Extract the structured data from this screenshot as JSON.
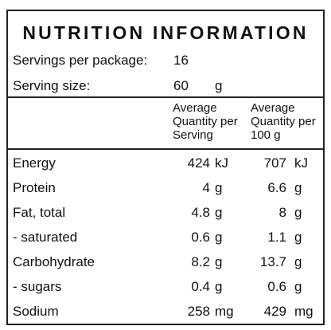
{
  "label": {
    "title": "NUTRITION INFORMATION",
    "servings_per_package_label": "Servings per package:",
    "servings_per_package_value": "16",
    "serving_size_label": "Serving size:",
    "serving_size_value": "60",
    "serving_size_unit": "g"
  },
  "columns": {
    "per_serving": "Average Quantity per Serving",
    "per_100g": "Average Quantity per 100 g"
  },
  "rows": [
    {
      "name": "Energy",
      "serving": "424",
      "serving_unit": "kJ",
      "per100": "707",
      "per100_unit": "kJ"
    },
    {
      "name": "Protein",
      "serving": "4",
      "serving_unit": "g",
      "per100": "6.6",
      "per100_unit": "g"
    },
    {
      "name": "Fat, total",
      "serving": "4.8",
      "serving_unit": "g",
      "per100": "8",
      "per100_unit": "g"
    },
    {
      "name": "- saturated",
      "serving": "0.6",
      "serving_unit": "g",
      "per100": "1.1",
      "per100_unit": "g"
    },
    {
      "name": "Carbohydrate",
      "serving": "8.2",
      "serving_unit": "g",
      "per100": "13.7",
      "per100_unit": "g"
    },
    {
      "name": "- sugars",
      "serving": "0.4",
      "serving_unit": "g",
      "per100": "0.6",
      "per100_unit": "g"
    },
    {
      "name": "Sodium",
      "serving": "258",
      "serving_unit": "mg",
      "per100": "429",
      "per100_unit": "mg"
    }
  ]
}
